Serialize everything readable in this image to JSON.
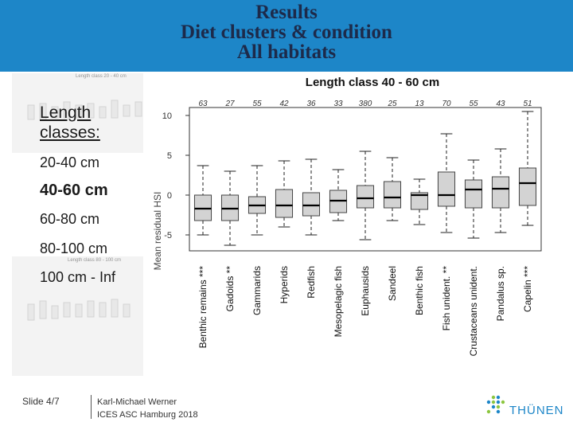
{
  "header": {
    "title_lines": [
      "Results",
      "Diet clusters & condition",
      "All habitats"
    ],
    "bg_color": "#1d86c8"
  },
  "left_panel": {
    "heading": [
      "Length",
      "classes:"
    ],
    "items": [
      {
        "label": "20-40 cm",
        "bold": false
      },
      {
        "label": "40-60 cm",
        "bold": true
      },
      {
        "label": "60-80 cm",
        "bold": false
      },
      {
        "label": "80-100 cm",
        "bold": false
      },
      {
        "label": "100 cm - Inf",
        "bold": false
      }
    ]
  },
  "background_thumbs": {
    "top_title": "Length class 20 - 40 cm",
    "bottom_title": "Length class 80 - 100 cm"
  },
  "chart_data": {
    "type": "boxplot",
    "title": "Length class 40 - 60 cm",
    "ylabel": "Mean residual HSI",
    "ylim": [
      -7,
      11
    ],
    "yticks": [
      10,
      5,
      0,
      -5
    ],
    "grid": false,
    "categories": [
      "Benthic remains ***",
      "Gadoids **",
      "Gammarids",
      "Hyperids",
      "Redfish",
      "Mesopelagic fish",
      "Euphausids",
      "Sandeel",
      "Benthic fish",
      "Fish unident. **",
      "Crustaceans unident.",
      "Pandalus sp.",
      "Capelin ***"
    ],
    "counts": [
      "63",
      "27",
      "55",
      "42",
      "36",
      "33",
      "380",
      "25",
      "13",
      "70",
      "55",
      "43",
      "51"
    ],
    "boxes": [
      {
        "min": -5.0,
        "q1": -3.2,
        "median": -1.7,
        "q3": 0.0,
        "max": 3.7
      },
      {
        "min": -6.3,
        "q1": -3.2,
        "median": -1.7,
        "q3": 0.0,
        "max": 3.0
      },
      {
        "min": -5.0,
        "q1": -2.3,
        "median": -1.3,
        "q3": -0.2,
        "max": 3.7
      },
      {
        "min": -4.0,
        "q1": -2.8,
        "median": -1.3,
        "q3": 0.7,
        "max": 4.3
      },
      {
        "min": -5.0,
        "q1": -2.6,
        "median": -1.3,
        "q3": 0.3,
        "max": 4.5
      },
      {
        "min": -3.2,
        "q1": -2.2,
        "median": -0.7,
        "q3": 0.6,
        "max": 3.2
      },
      {
        "min": -5.6,
        "q1": -1.6,
        "median": -0.4,
        "q3": 1.2,
        "max": 5.5
      },
      {
        "min": -3.2,
        "q1": -1.6,
        "median": -0.3,
        "q3": 1.7,
        "max": 4.7
      },
      {
        "min": -3.7,
        "q1": -1.8,
        "median": 0.0,
        "q3": 0.3,
        "max": 2.0
      },
      {
        "min": -4.7,
        "q1": -1.4,
        "median": 0.0,
        "q3": 2.9,
        "max": 7.7
      },
      {
        "min": -5.4,
        "q1": -1.6,
        "median": 0.7,
        "q3": 1.9,
        "max": 4.4
      },
      {
        "min": -4.7,
        "q1": -1.6,
        "median": 0.8,
        "q3": 2.3,
        "max": 5.8
      },
      {
        "min": -3.8,
        "q1": -1.3,
        "median": 1.5,
        "q3": 3.4,
        "max": 10.5
      }
    ]
  },
  "footer": {
    "slide": "Slide 4/7",
    "author": "Karl-Michael Werner",
    "event": "ICES ASC Hamburg 2018",
    "logo_text": "THÜNEN"
  }
}
